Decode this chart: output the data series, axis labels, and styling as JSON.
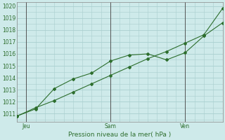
{
  "xlabel": "Pression niveau de la mer( hPa )",
  "bg_color": "#ceeaea",
  "grid_color": "#aacfcf",
  "line_color": "#2d6e2d",
  "line1_y": [
    1010.8,
    1011.4,
    1013.1,
    1013.9,
    1014.4,
    1015.4,
    1015.9,
    1016.0,
    1015.5,
    1016.1,
    1017.5,
    1018.6
  ],
  "line2_y": [
    1010.8,
    1011.5,
    1012.1,
    1012.8,
    1013.5,
    1014.2,
    1014.9,
    1015.6,
    1016.2,
    1016.9,
    1017.6,
    1019.8
  ],
  "ylim": [
    1010.3,
    1020.3
  ],
  "yticks": [
    1011,
    1012,
    1013,
    1014,
    1015,
    1016,
    1017,
    1018,
    1019,
    1020
  ],
  "xlim": [
    0,
    11
  ],
  "xtick_positions": [
    0.5,
    5.0,
    9.0
  ],
  "xtick_labels": [
    "Jeu",
    "Sam",
    "Ven"
  ],
  "vline_positions": [
    0.5,
    5.0,
    9.0
  ],
  "vline_color": "#555555",
  "marker": "D",
  "markersize": 2.0
}
